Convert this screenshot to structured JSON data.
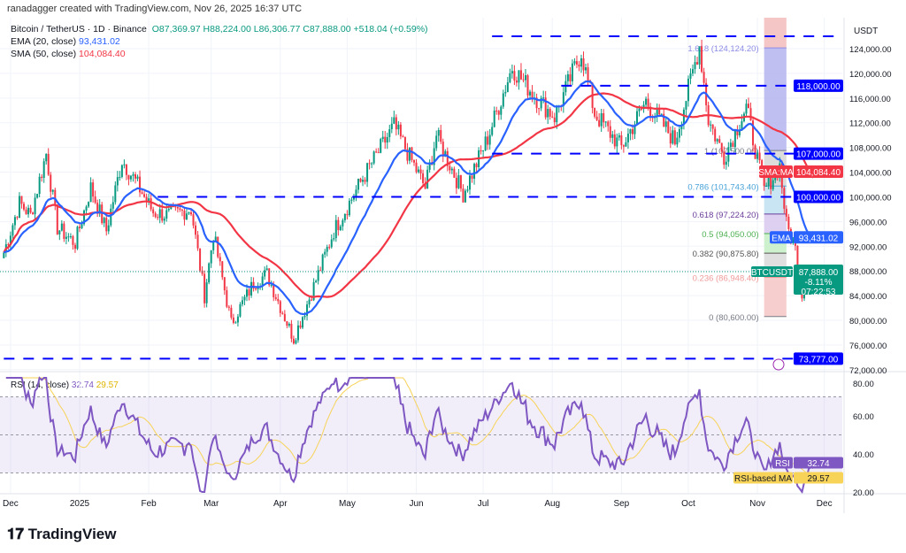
{
  "credit": "ranadagger created with TradingView.com, Nov 26, 2025 16:37 UTC",
  "header": {
    "symbol": "Bitcoin / TetherUS · 1D · Binance",
    "o": "O87,369.97",
    "h": "H88,224.00",
    "l": "L86,306.77",
    "c": "C87,888.00",
    "change": "+518.04 (+0.59%)",
    "ema_label": "EMA (20, close)",
    "ema_value": "93,431.02",
    "sma_label": "SMA (50, close)",
    "sma_value": "104,084.40"
  },
  "currency": "USDT",
  "colors": {
    "up": "#089981",
    "down": "#f23645",
    "ema": "#2962ff",
    "sma": "#f23645",
    "rsi": "#7e57c2",
    "rsi_ma": "#f7d358",
    "level": "#0000ff"
  },
  "chart_data": {
    "type": "candlestick",
    "ylim": [
      72000,
      128000
    ],
    "yticks": [
      72000,
      76000,
      80000,
      84000,
      88000,
      92000,
      96000,
      100000,
      104000,
      108000,
      112000,
      116000,
      120000,
      124000
    ],
    "xticks": [
      {
        "date": "2024-12-01",
        "label": "Dec"
      },
      {
        "date": "2025-01-01",
        "label": "2025"
      },
      {
        "date": "2025-02-01",
        "label": "Feb"
      },
      {
        "date": "2025-03-01",
        "label": "Mar"
      },
      {
        "date": "2025-04-01",
        "label": "Apr"
      },
      {
        "date": "2025-05-01",
        "label": "May"
      },
      {
        "date": "2025-06-01",
        "label": "Jun"
      },
      {
        "date": "2025-07-01",
        "label": "Jul"
      },
      {
        "date": "2025-08-01",
        "label": "Aug"
      },
      {
        "date": "2025-09-01",
        "label": "Sep"
      },
      {
        "date": "2025-10-01",
        "label": "Oct"
      },
      {
        "date": "2025-11-01",
        "label": "Nov"
      },
      {
        "date": "2025-12-01",
        "label": "Dec"
      }
    ],
    "close_path": [
      [
        "2024-11-28",
        91000
      ],
      [
        "2024-12-05",
        99000
      ],
      [
        "2024-12-10",
        97000
      ],
      [
        "2024-12-17",
        107000
      ],
      [
        "2024-12-22",
        95000
      ],
      [
        "2024-12-30",
        92500
      ],
      [
        "2025-01-06",
        101500
      ],
      [
        "2025-01-13",
        94500
      ],
      [
        "2025-01-20",
        106000
      ],
      [
        "2025-01-26",
        102500
      ],
      [
        "2025-02-03",
        97500
      ],
      [
        "2025-02-10",
        97000
      ],
      [
        "2025-02-20",
        98000
      ],
      [
        "2025-02-26",
        84000
      ],
      [
        "2025-03-02",
        94000
      ],
      [
        "2025-03-10",
        79500
      ],
      [
        "2025-03-20",
        86000
      ],
      [
        "2025-03-26",
        87500
      ],
      [
        "2025-04-07",
        77000
      ],
      [
        "2025-04-15",
        84500
      ],
      [
        "2025-04-25",
        94500
      ],
      [
        "2025-05-08",
        103000
      ],
      [
        "2025-05-22",
        111500
      ],
      [
        "2025-06-05",
        101500
      ],
      [
        "2025-06-10",
        110000
      ],
      [
        "2025-06-22",
        100500
      ],
      [
        "2025-07-03",
        109500
      ],
      [
        "2025-07-14",
        121000
      ],
      [
        "2025-07-25",
        116000
      ],
      [
        "2025-08-02",
        113000
      ],
      [
        "2025-08-14",
        123500
      ],
      [
        "2025-08-20",
        113500
      ],
      [
        "2025-09-01",
        108000
      ],
      [
        "2025-09-12",
        115500
      ],
      [
        "2025-09-25",
        109000
      ],
      [
        "2025-10-06",
        124500
      ],
      [
        "2025-10-10",
        112500
      ],
      [
        "2025-10-17",
        106500
      ],
      [
        "2025-10-27",
        114500
      ],
      [
        "2025-11-04",
        101000
      ],
      [
        "2025-11-11",
        105000
      ],
      [
        "2025-11-14",
        95500
      ],
      [
        "2025-11-18",
        91500
      ],
      [
        "2025-11-21",
        84500
      ],
      [
        "2025-11-24",
        88500
      ],
      [
        "2025-11-26",
        87888
      ]
    ],
    "last": {
      "symbol": "BTCUSDT",
      "price": "87,888.00",
      "change": "-8.11%",
      "countdown": "07:22:53"
    },
    "ema_tag": {
      "name": "EMA",
      "value": "93,431.02"
    },
    "sma_tag": {
      "name": "SMA:MA",
      "value": "104,084.40"
    },
    "levels": [
      {
        "price": 118000,
        "label": "118,000.00",
        "from": "2025-08-05"
      },
      {
        "price": 107000,
        "label": "107,000.00",
        "from": "2025-07-05"
      },
      {
        "price": 100000,
        "label": "100,000.00",
        "from": "2025-02-05"
      },
      {
        "price": 73777,
        "label": "73,777.00",
        "from": "2024-11-28"
      },
      {
        "price": 126000,
        "label": "",
        "from": "2025-07-05"
      }
    ],
    "fib": {
      "from": "2025-11-04",
      "to": "2025-11-14",
      "levels": [
        {
          "ratio": 1.618,
          "price": 124124.2,
          "label": "1.618 (124,124.20)",
          "color": "#8c8ce6",
          "fill": "#b4b4ee"
        },
        {
          "ratio": 1,
          "price": 107500,
          "label": "1 (107,500.00)",
          "color": "#787b86",
          "fill": "#d6d6d6"
        },
        {
          "ratio": 0.786,
          "price": 101743.4,
          "label": "0.786 (101,743.40)",
          "color": "#4aa3d9",
          "fill": "#bfe0f2"
        },
        {
          "ratio": 0.618,
          "price": 97224.2,
          "label": "0.618 (97,224.20)",
          "color": "#6a3d9a",
          "fill": "#d8c8ee"
        },
        {
          "ratio": 0.5,
          "price": 94050,
          "label": "0.5 (94,050.00)",
          "color": "#4caf50",
          "fill": "#c6efc4"
        },
        {
          "ratio": 0.382,
          "price": 90875.8,
          "label": "0.382 (90,875.80)",
          "color": "#555",
          "fill": "#d9d9d9"
        },
        {
          "ratio": 0.236,
          "price": 86948.4,
          "label": "0.236 (86,948.40)",
          "color": "#f09a9a",
          "fill": "#f5c6c6"
        },
        {
          "ratio": 0,
          "price": 80600,
          "label": "0 (80,600.00)",
          "color": "#787b86",
          "fill": ""
        }
      ]
    },
    "rsi": {
      "label": "RSI (14, close)",
      "value": "32.74",
      "ma_value": "29.57",
      "tag": "RSI",
      "ma_tag": "RSI-based MA",
      "ylim": [
        20,
        80
      ],
      "yticks": [
        20,
        40,
        60,
        80
      ],
      "bands": [
        30,
        50,
        70
      ]
    }
  },
  "brand": "TradingView"
}
